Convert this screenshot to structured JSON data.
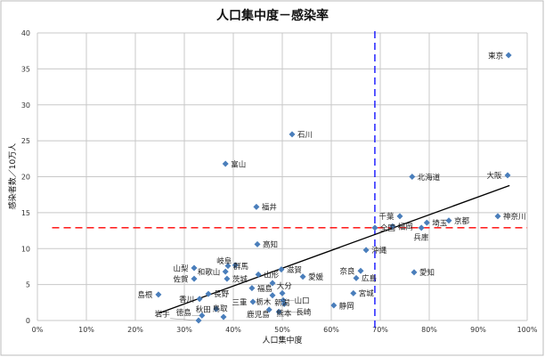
{
  "chart_data": {
    "type": "scatter",
    "title": "人口集中度－感染率",
    "xlabel": "人口集中度",
    "ylabel": "感染者数／10万人",
    "xlim": [
      0,
      100
    ],
    "ylim": [
      0,
      40
    ],
    "x_unit": "%",
    "xticks": [
      "0%",
      "10%",
      "20%",
      "30%",
      "40%",
      "50%",
      "60%",
      "70%",
      "80%",
      "90%",
      "100%"
    ],
    "yticks": [
      "0",
      "5",
      "10",
      "15",
      "20",
      "25",
      "30",
      "35",
      "40"
    ],
    "grid": true,
    "legend": "none",
    "marker_color": "#4a7ebb",
    "points": [
      {
        "label": "東京",
        "x": 96.2,
        "y": 36.9
      },
      {
        "label": "大阪",
        "x": 96.0,
        "y": 20.2
      },
      {
        "label": "北海道",
        "x": 76.5,
        "y": 20.0
      },
      {
        "label": "石川",
        "x": 52.0,
        "y": 25.9
      },
      {
        "label": "富山",
        "x": 38.4,
        "y": 21.8
      },
      {
        "label": "福井",
        "x": 44.7,
        "y": 15.8
      },
      {
        "label": "高知",
        "x": 44.9,
        "y": 10.6
      },
      {
        "label": "神奈川",
        "x": 94.0,
        "y": 14.5
      },
      {
        "label": "京都",
        "x": 84.0,
        "y": 13.9
      },
      {
        "label": "埼玉",
        "x": 79.5,
        "y": 13.6
      },
      {
        "label": "千葉",
        "x": 74.0,
        "y": 14.5
      },
      {
        "label": "兵庫",
        "x": 78.4,
        "y": 12.9
      },
      {
        "label": "全国",
        "x": 68.9,
        "y": 12.9
      },
      {
        "label": "福岡",
        "x": 72.5,
        "y": 13.1
      },
      {
        "label": "沖縄",
        "x": 67.1,
        "y": 9.8
      },
      {
        "label": "奈良",
        "x": 66.0,
        "y": 6.9
      },
      {
        "label": "広島",
        "x": 65.1,
        "y": 5.9
      },
      {
        "label": "愛知",
        "x": 76.9,
        "y": 6.7
      },
      {
        "label": "宮城",
        "x": 64.5,
        "y": 3.8
      },
      {
        "label": "静岡",
        "x": 60.5,
        "y": 2.1
      },
      {
        "label": "山梨",
        "x": 32.0,
        "y": 7.3
      },
      {
        "label": "佐賀",
        "x": 32.0,
        "y": 5.8
      },
      {
        "label": "岐阜",
        "x": 40.4,
        "y": 7.7
      },
      {
        "label": "群馬",
        "x": 38.9,
        "y": 7.6
      },
      {
        "label": "和歌山",
        "x": 38.4,
        "y": 6.8
      },
      {
        "label": "茨城",
        "x": 38.7,
        "y": 5.8
      },
      {
        "label": "山形",
        "x": 45.1,
        "y": 6.4
      },
      {
        "label": "滋賀",
        "x": 49.8,
        "y": 7.1
      },
      {
        "label": "愛媛",
        "x": 54.2,
        "y": 6.1
      },
      {
        "label": "大分",
        "x": 48.0,
        "y": 5.2
      },
      {
        "label": "福島",
        "x": 43.8,
        "y": 4.5
      },
      {
        "label": "島根",
        "x": 24.7,
        "y": 3.6
      },
      {
        "label": "長野",
        "x": 34.9,
        "y": 3.7
      },
      {
        "label": "香川",
        "x": 33.1,
        "y": 3.0
      },
      {
        "label": "栃木",
        "x": 48.0,
        "y": 3.5
      },
      {
        "label": "新潟",
        "x": 50.0,
        "y": 3.8
      },
      {
        "label": "三重",
        "x": 44.0,
        "y": 2.6
      },
      {
        "label": "山口",
        "x": 50.2,
        "y": 2.8
      },
      {
        "label": "熊本",
        "x": 50.4,
        "y": 2.3
      },
      {
        "label": "長崎",
        "x": 49.3,
        "y": 1.2
      },
      {
        "label": "鹿児島",
        "x": 47.3,
        "y": 1.5
      },
      {
        "label": "秋田",
        "x": 36.5,
        "y": 1.6
      },
      {
        "label": "鳥取",
        "x": 38.0,
        "y": 0.5
      },
      {
        "label": "徳島",
        "x": 33.6,
        "y": 0.7
      },
      {
        "label": "岩手",
        "x": 32.9,
        "y": 0.0
      }
    ],
    "trendline": {
      "type": "linear",
      "slope": 0.248,
      "intercept": -5.13,
      "x_range": [
        24.7,
        96.4
      ],
      "color": "#000000"
    },
    "reference_lines": [
      {
        "orientation": "horizontal",
        "value": 12.9,
        "color": "#ff0000",
        "style": "dashed"
      },
      {
        "orientation": "vertical",
        "value": 68.9,
        "color": "#0000ff",
        "style": "dashed"
      }
    ]
  }
}
